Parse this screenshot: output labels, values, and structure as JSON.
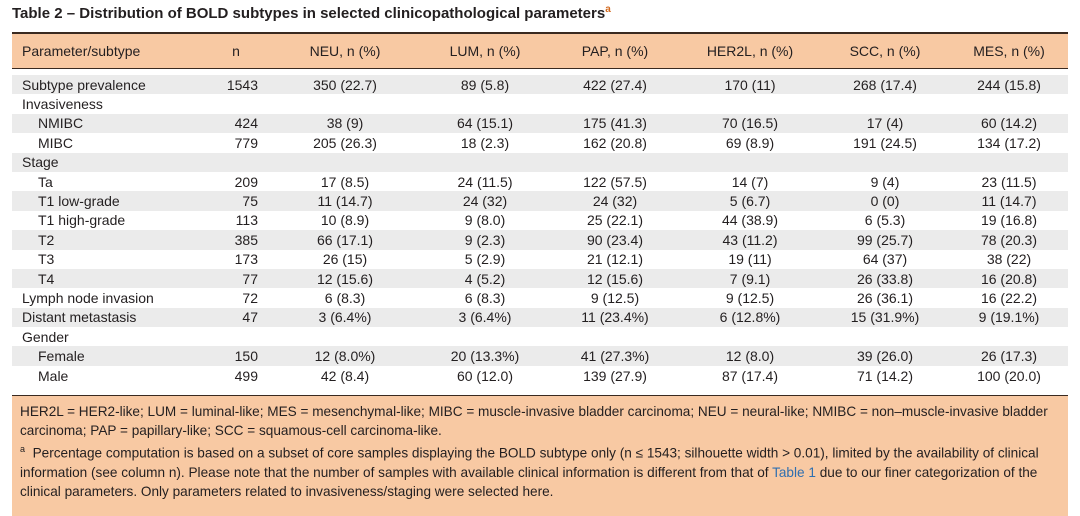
{
  "title": {
    "text": "Table 2 – Distribution of BOLD subtypes in selected clinicopathological parameters",
    "marker": "a"
  },
  "table": {
    "header": [
      "Parameter/subtype",
      "n",
      "NEU, n (%)",
      "LUM, n (%)",
      "PAP, n (%)",
      "HER2L, n (%)",
      "SCC, n (%)",
      "MES, n (%)"
    ],
    "rows": [
      [
        "Subtype prevalence",
        "1543",
        "350 (22.7)",
        "89 (5.8)",
        "422 (27.4)",
        "170 (11)",
        "268 (17.4)",
        "244 (15.8)"
      ],
      {
        "section": "Invasiveness",
        "rows": [
          [
            "NMIBC",
            "424",
            "38 (9)",
            "64 (15.1)",
            "175 (41.3)",
            "70 (16.5)",
            "17 (4)",
            "60 (14.2)"
          ],
          [
            "MIBC",
            "779",
            "205 (26.3)",
            "18 (2.3)",
            "162 (20.8)",
            "69 (8.9)",
            "191 (24.5)",
            "134 (17.2)"
          ]
        ]
      },
      {
        "section": "Stage",
        "rows": [
          [
            "Ta",
            "209",
            "17 (8.5)",
            "24 (11.5)",
            "122 (57.5)",
            "14 (7)",
            "9 (4)",
            "23 (11.5)"
          ],
          [
            "T1 low-grade",
            "75",
            "11 (14.7)",
            "24 (32)",
            "24 (32)",
            "5 (6.7)",
            "0 (0)",
            "11 (14.7)"
          ],
          [
            "T1 high-grade",
            "113",
            "10 (8.9)",
            "9 (8.0)",
            "25 (22.1)",
            "44 (38.9)",
            "6 (5.3)",
            "19 (16.8)"
          ],
          [
            "T2",
            "385",
            "66 (17.1)",
            "9 (2.3)",
            "90 (23.4)",
            "43 (11.2)",
            "99 (25.7)",
            "78 (20.3)"
          ],
          [
            "T3",
            "173",
            "26 (15)",
            "5 (2.9)",
            "21 (12.1)",
            "19 (11)",
            "64 (37)",
            "38 (22)"
          ],
          [
            "T4",
            "77",
            "12 (15.6)",
            "4 (5.2)",
            "12 (15.6)",
            "7 (9.1)",
            "26 (33.8)",
            "16 (20.8)"
          ]
        ]
      },
      [
        "Lymph node invasion",
        "72",
        "6 (8.3)",
        "6 (8.3)",
        "9 (12.5)",
        "9 (12.5)",
        "26 (36.1)",
        "16 (22.2)"
      ],
      [
        "Distant metastasis",
        "47",
        "3 (6.4%)",
        "3 (6.4%)",
        "11 (23.4%)",
        "6 (12.8%)",
        "15 (31.9%)",
        "9 (19.1%)"
      ],
      {
        "section": "Gender",
        "rows": [
          [
            "Female",
            "150",
            "12 (8.0%)",
            "20 (13.3%)",
            "41 (27.3%)",
            "12 (8.0)",
            "39 (26.0)",
            "26 (17.3)"
          ],
          [
            "Male",
            "499",
            "42 (8.4)",
            "60 (12.0)",
            "139 (27.9)",
            "87 (17.4)",
            "71 (14.2)",
            "100 (20.0)"
          ]
        ]
      }
    ]
  },
  "footnotes": {
    "abbreviations": "HER2L = HER2-like; LUM = luminal-like; MES = mesenchymal-like; MIBC = muscle-invasive bladder carcinoma; NEU = neural-like; NMIBC = non–muscle-invasive bladder carcinoma; PAP = papillary-like; SCC = squamous-cell carcinoma-like.",
    "note": {
      "marker": "a",
      "before": "Percentage computation is based on a subset of core samples displaying the BOLD subtype only (n ≤ 1543; silhouette width > 0.01), limited by the availability of clinical information (see column n). Please note that the number of samples with available clinical information is different from that of ",
      "link": "Table 1",
      "after": " due to our finer categorization of the clinical parameters. Only parameters related to invasiveness/staging were selected here."
    }
  }
}
